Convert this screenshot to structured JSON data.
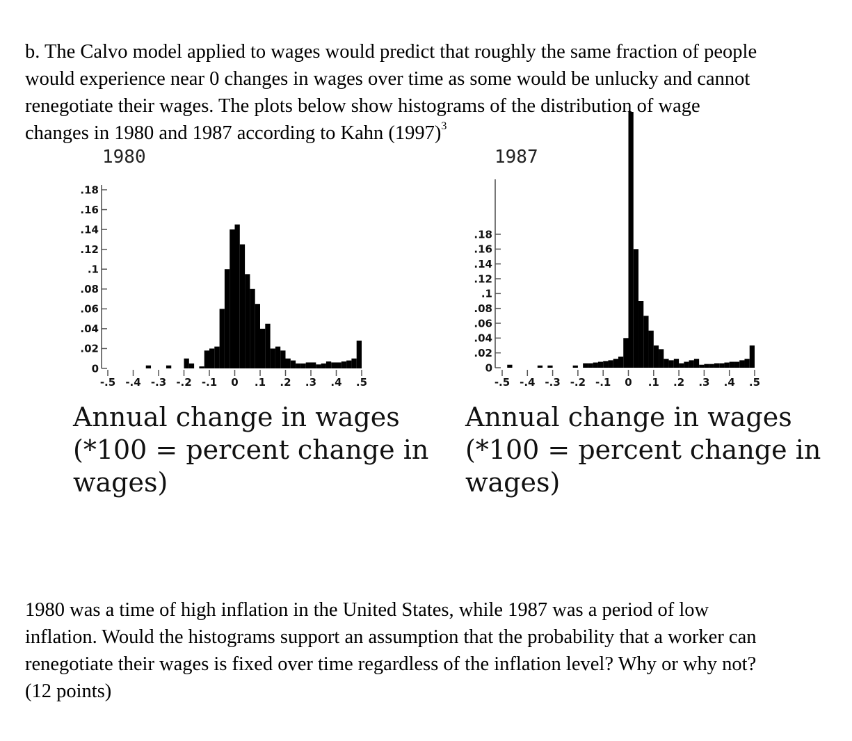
{
  "question": {
    "para1_lines": [
      "b. The Calvo model applied to wages would predict that roughly the same fraction of people",
      "would experience near 0 changes in wages over time as some would be unlucky and cannot",
      "renegotiate their wages.  The plots below show histograms of the distribution of wage",
      "changes in 1980 and 1987 according to Kahn (1997)"
    ],
    "footnote_mark": "3",
    "para2_lines": [
      "1980 was a time of high inflation in the United States, while 1987 was a period of low",
      "inflation.  Would the histograms support an assumption that the probability that a worker can",
      "renegotiate their wages is fixed over time regardless of the inflation level?  Why or why not?",
      "(12 points)"
    ]
  },
  "figure": {
    "caption_lines": [
      "Annual change in wages",
      "(*100 = percent change in",
      "wages)"
    ]
  },
  "chart_data": [
    {
      "type": "bar",
      "title": "1980",
      "xlabel": "Annual change in wages (*100 = percent change in wages)",
      "ylabel": "",
      "x_tick_labels": [
        "-.5",
        "-.4",
        "-.3",
        "-.2",
        "-.1",
        "0",
        ".1",
        ".2",
        ".3",
        ".4",
        ".5"
      ],
      "y_tick_labels": [
        "0",
        ".02",
        ".04",
        ".06",
        ".08",
        ".1",
        ".12",
        ".14",
        ".16",
        ".18"
      ],
      "xlim": [
        -0.5,
        0.5
      ],
      "ylim": [
        0,
        0.18
      ],
      "bin_width": 0.02,
      "bin_starts": [
        -0.35,
        -0.27,
        -0.2,
        -0.18,
        -0.14,
        -0.12,
        -0.1,
        -0.08,
        -0.06,
        -0.04,
        -0.02,
        0.0,
        0.02,
        0.04,
        0.06,
        0.08,
        0.1,
        0.12,
        0.14,
        0.16,
        0.18,
        0.2,
        0.22,
        0.24,
        0.26,
        0.28,
        0.3,
        0.32,
        0.34,
        0.36,
        0.38,
        0.4,
        0.42,
        0.44,
        0.46,
        0.48
      ],
      "values": [
        0.003,
        0.003,
        0.01,
        0.005,
        0.002,
        0.018,
        0.02,
        0.022,
        0.06,
        0.1,
        0.14,
        0.145,
        0.125,
        0.095,
        0.08,
        0.065,
        0.04,
        0.045,
        0.02,
        0.022,
        0.018,
        0.01,
        0.008,
        0.005,
        0.005,
        0.006,
        0.006,
        0.004,
        0.005,
        0.007,
        0.006,
        0.006,
        0.007,
        0.008,
        0.01,
        0.028
      ]
    },
    {
      "type": "bar",
      "title": "1987",
      "xlabel": "Annual change in wages (*100 = percent change in wages)",
      "ylabel": "",
      "x_tick_labels": [
        "-.5",
        "-.4",
        "-.3",
        "-.2",
        "-.1",
        "0",
        ".1",
        ".2",
        ".3",
        ".4",
        ".5"
      ],
      "y_tick_labels": [
        "0",
        ".02",
        ".04",
        ".06",
        ".08",
        ".1",
        ".12",
        ".14",
        ".16",
        ".18"
      ],
      "xlim": [
        -0.5,
        0.5
      ],
      "ylim": [
        0,
        0.18
      ],
      "bin_width": 0.02,
      "bin_starts": [
        -0.48,
        -0.36,
        -0.32,
        -0.22,
        -0.18,
        -0.16,
        -0.14,
        -0.12,
        -0.1,
        -0.08,
        -0.06,
        -0.04,
        -0.02,
        0.0,
        0.02,
        0.04,
        0.06,
        0.08,
        0.1,
        0.12,
        0.14,
        0.16,
        0.18,
        0.2,
        0.22,
        0.24,
        0.26,
        0.28,
        0.3,
        0.32,
        0.34,
        0.36,
        0.38,
        0.4,
        0.42,
        0.44,
        0.46,
        0.48
      ],
      "values": [
        0.004,
        0.003,
        0.003,
        0.003,
        0.006,
        0.006,
        0.007,
        0.008,
        0.009,
        0.01,
        0.012,
        0.015,
        0.04,
        0.345,
        0.16,
        0.09,
        0.07,
        0.05,
        0.03,
        0.025,
        0.012,
        0.01,
        0.012,
        0.006,
        0.008,
        0.01,
        0.012,
        0.004,
        0.005,
        0.005,
        0.006,
        0.006,
        0.007,
        0.008,
        0.008,
        0.01,
        0.012,
        0.03
      ]
    }
  ]
}
